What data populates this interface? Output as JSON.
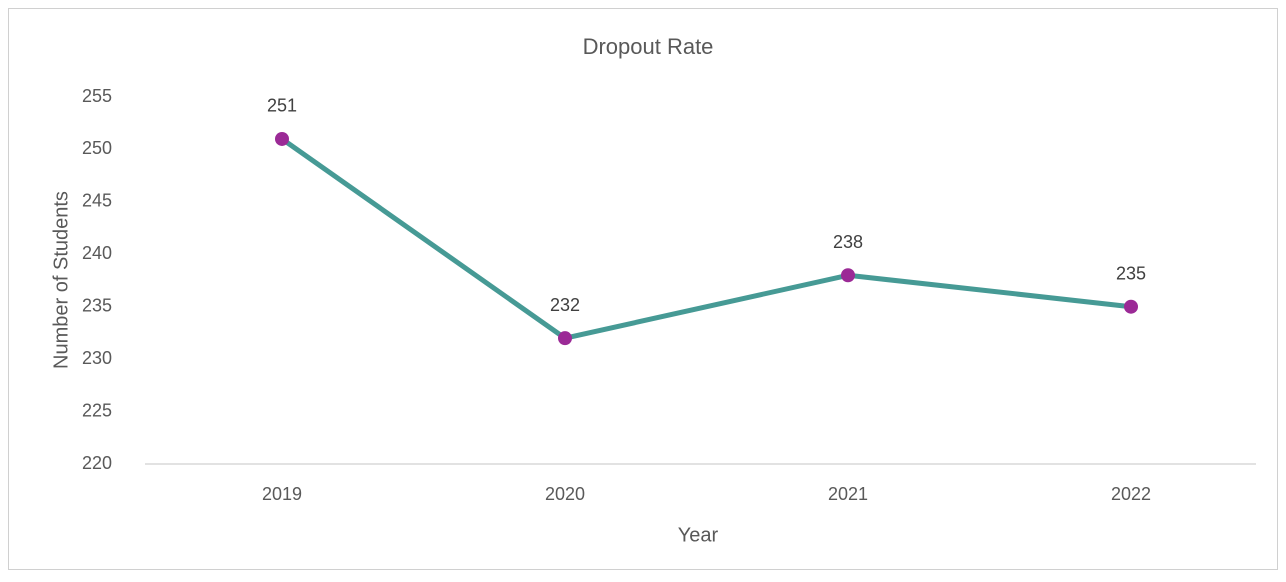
{
  "chart_data": {
    "type": "line",
    "title": "Dropout Rate",
    "x_label": "Year",
    "y_label": "Number of Students",
    "categories": [
      "2019",
      "2020",
      "2021",
      "2022"
    ],
    "series": [
      {
        "name": "Number of Students",
        "color": "#469a95",
        "marker_color": "#9b2a96",
        "values": [
          251,
          232,
          238,
          235
        ]
      }
    ],
    "ylim": [
      220,
      255
    ],
    "yticks": [
      220,
      225,
      230,
      235,
      240,
      245,
      250,
      255
    ],
    "grid": false,
    "data_labels": true
  }
}
